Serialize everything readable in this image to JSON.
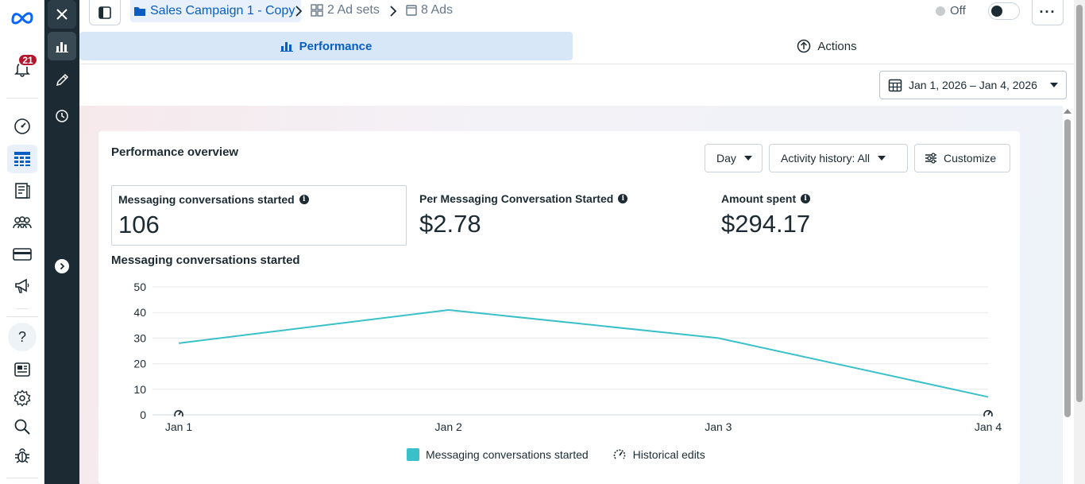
{
  "rail": {
    "notification_count": "21",
    "items": [
      "speedometer-icon",
      "table-icon",
      "catalog-icon",
      "audience-icon",
      "billing-icon",
      "megaphone-icon"
    ],
    "bottom_items": [
      "help-icon",
      "news-icon",
      "settings-icon",
      "search-icon",
      "bug-icon"
    ],
    "help_glyph": "?"
  },
  "dark_rail": {
    "items": [
      "close-icon",
      "bar-chart-icon",
      "pencil-icon",
      "clock-icon"
    ]
  },
  "breadcrumb": {
    "campaign": "Sales Campaign 1 - Copy",
    "ad_sets": "2 Ad sets",
    "ads": "8 Ads"
  },
  "status": {
    "label": "Off",
    "more": "···"
  },
  "tabs": {
    "performance": "Performance",
    "actions": "Actions"
  },
  "date_range": "Jan 1, 2026 – Jan 4, 2026",
  "overview": {
    "title": "Performance overview",
    "day_label": "Day",
    "activity_label": "Activity history: All",
    "customize_label": "Customize"
  },
  "metrics": [
    {
      "label": "Messaging conversations started",
      "value": "106"
    },
    {
      "label": "Per Messaging Conversation Started",
      "value": "$2.78"
    },
    {
      "label": "Amount spent",
      "value": "$294.17"
    }
  ],
  "colors": {
    "accent": "#0a5dc2",
    "series": "#3ac0c8",
    "dark_rail": "#1c2b33"
  },
  "chart_data": {
    "type": "line",
    "title": "Messaging conversations started",
    "categories": [
      "Jan 1",
      "Jan 2",
      "Jan 3",
      "Jan 4"
    ],
    "series": [
      {
        "name": "Messaging conversations started",
        "values": [
          28,
          41,
          30,
          7
        ]
      }
    ],
    "ylim": [
      0,
      50
    ],
    "yticks": [
      0,
      10,
      20,
      30,
      40,
      50
    ],
    "grid": true,
    "legend": "bottom-center",
    "historical_edits_at": [
      "Jan 1",
      "Jan 4"
    ]
  },
  "legend": {
    "series_label": "Messaging conversations started",
    "edits_label": "Historical edits"
  }
}
